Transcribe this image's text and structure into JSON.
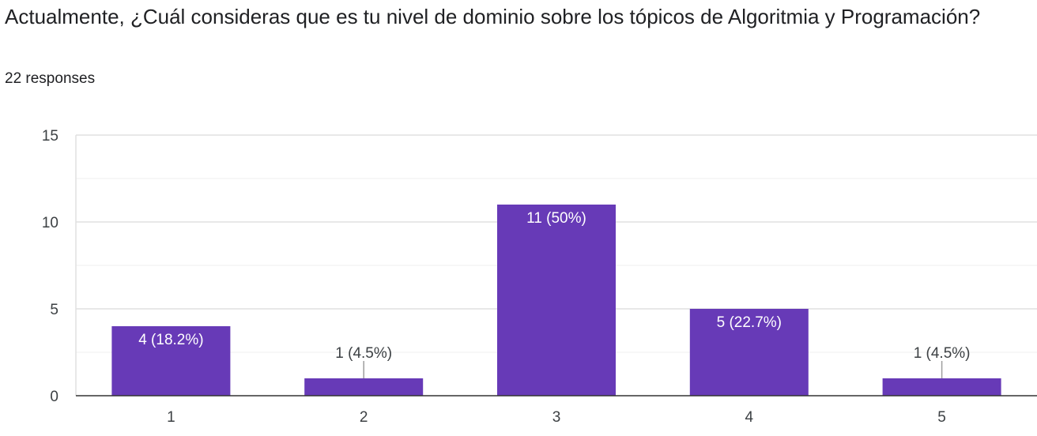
{
  "question": {
    "title": "Actualmente, ¿Cuál consideras que es tu nivel de dominio sobre los tópicos de Algoritmia y Programación?",
    "responses": "22 responses"
  },
  "colors": {
    "bar": "#673ab7",
    "grid": "#e0e0e0",
    "axis": "#333333"
  },
  "chart_data": {
    "type": "bar",
    "categories": [
      "1",
      "2",
      "3",
      "4",
      "5"
    ],
    "values": [
      4,
      1,
      11,
      5,
      1
    ],
    "data_labels": [
      "4 (18.2%)",
      "1 (4.5%)",
      "11 (50%)",
      "5 (22.7%)",
      "1 (4.5%)"
    ],
    "y_ticks": [
      "0",
      "5",
      "10",
      "15"
    ],
    "ylim": [
      0,
      15
    ],
    "grid": true,
    "legend": "none"
  }
}
